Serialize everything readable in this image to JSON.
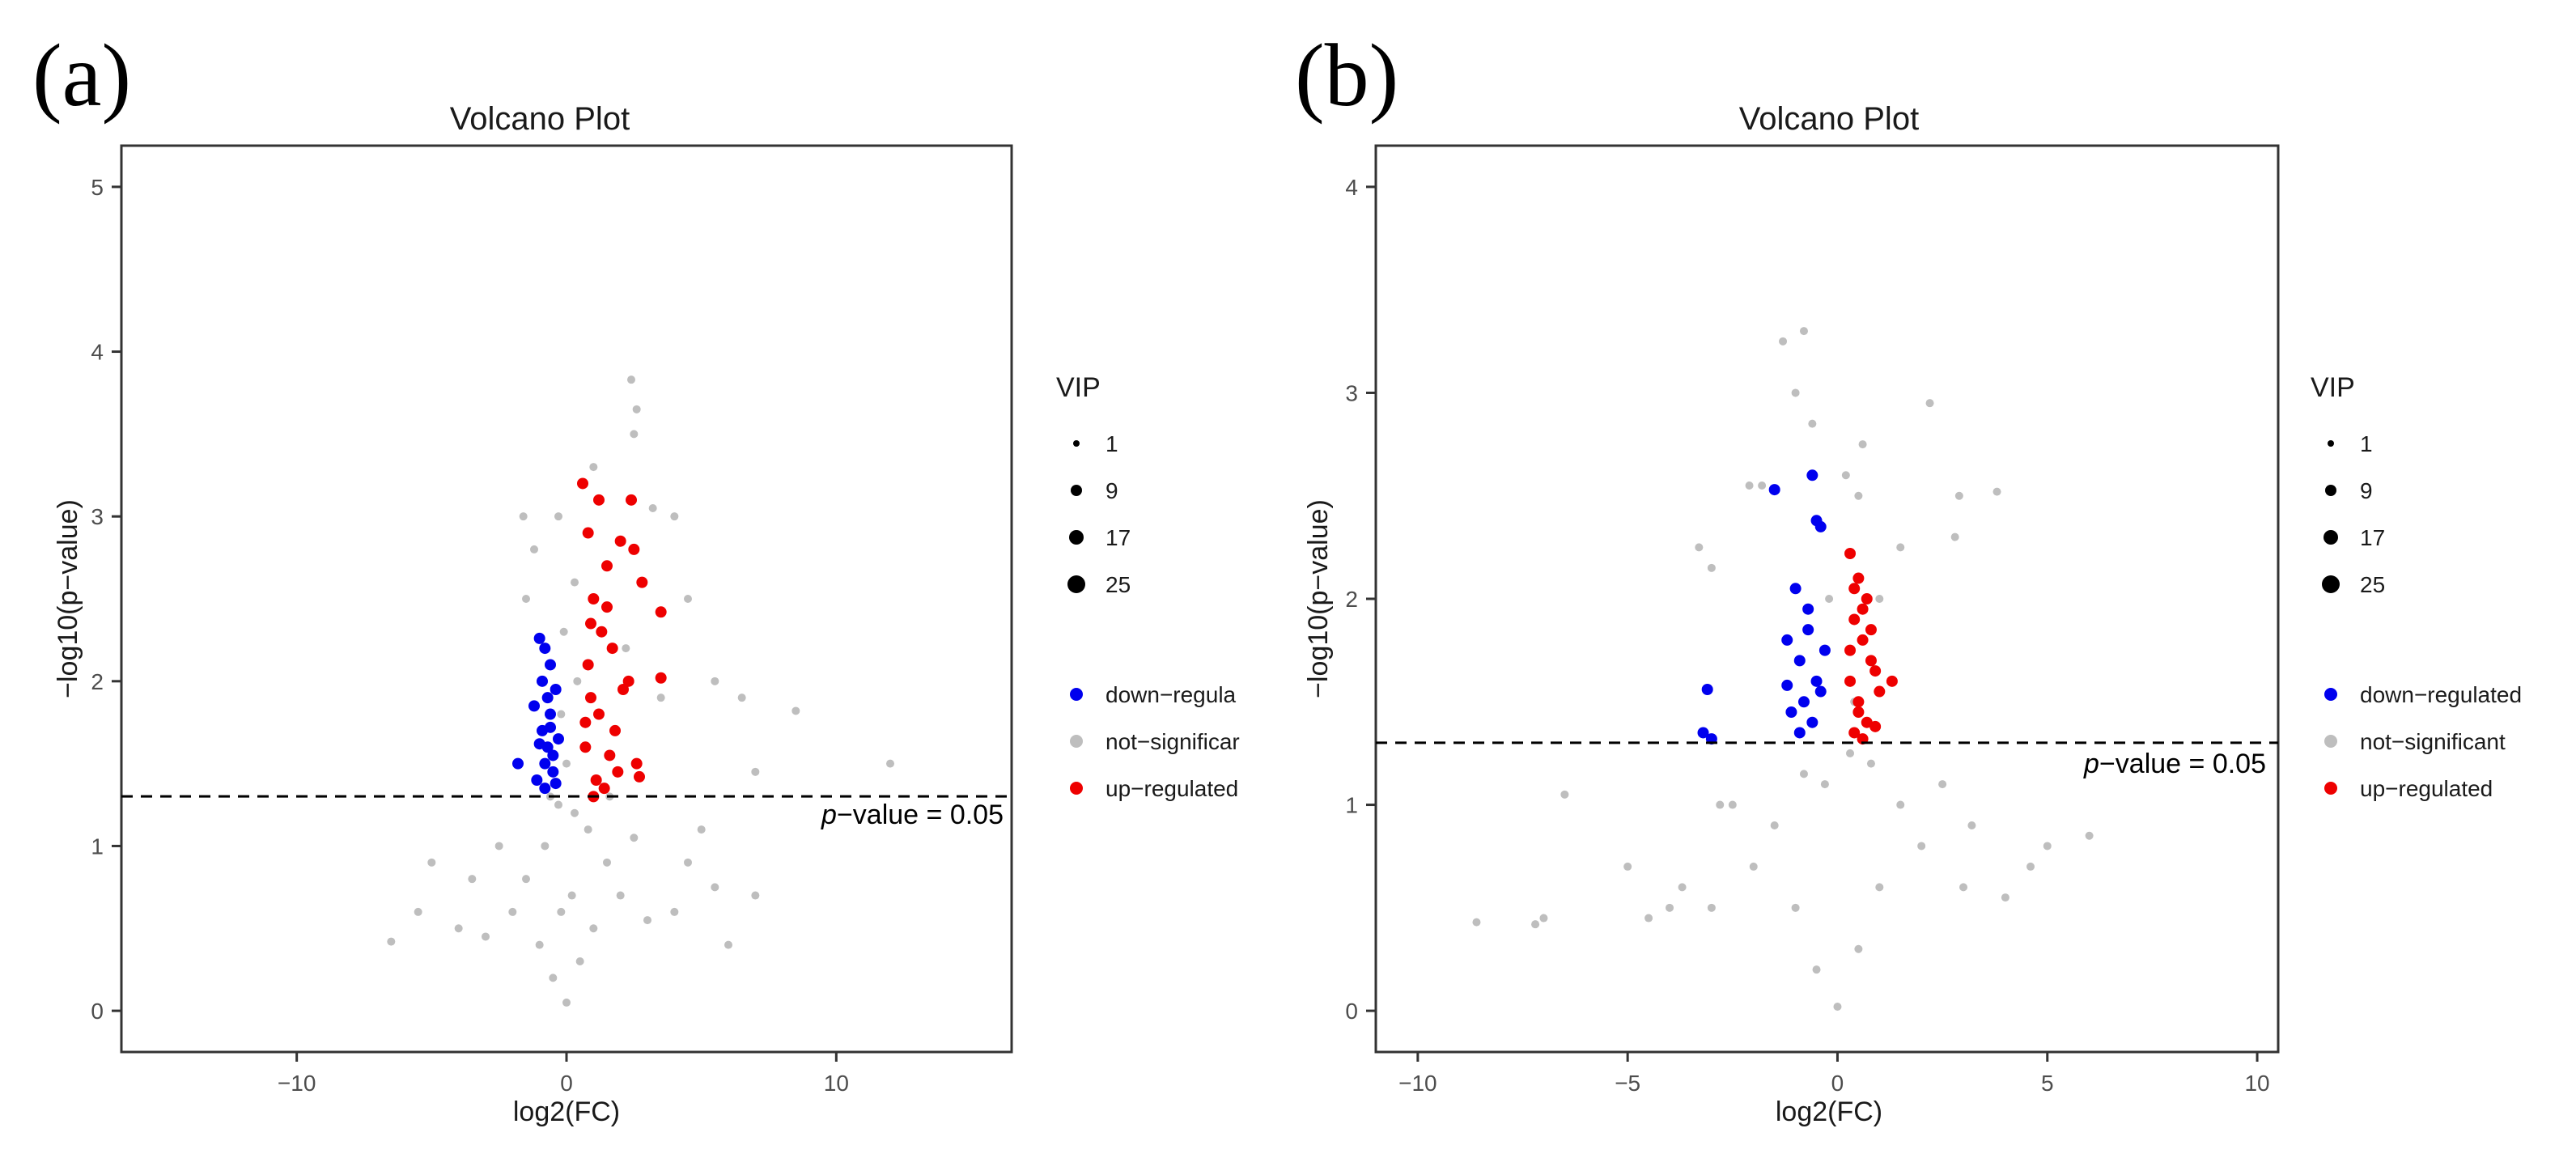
{
  "chart_data": [
    {
      "panel": "(a)",
      "type": "scatter",
      "title": "Volcano Plot",
      "xlabel": "log2(FC)",
      "ylabel": "−log10(p−value)",
      "xlim": [
        -16.5,
        16.5
      ],
      "ylim": [
        -0.25,
        5.25
      ],
      "xticks": [
        -10,
        0,
        10
      ],
      "xtick_labels": [
        "−10",
        "0",
        "10"
      ],
      "yticks": [
        0,
        1,
        2,
        3,
        4,
        5
      ],
      "threshold": {
        "y": 1.301,
        "label_italic": "p",
        "label_rest": "−value = 0.05"
      },
      "legend": {
        "size_title": "VIP",
        "sizes": [
          {
            "label": "1",
            "value": 1
          },
          {
            "label": "9",
            "value": 9
          },
          {
            "label": "17",
            "value": 17
          },
          {
            "label": "25",
            "value": 25
          }
        ],
        "colors": [
          {
            "label": "down−regula",
            "color": "#0000ee"
          },
          {
            "label": "not−significar",
            "color": "#bebebe"
          },
          {
            "label": "up−regulated",
            "color": "#ee0000"
          }
        ]
      },
      "series": [
        {
          "name": "down-regulated",
          "color": "#0000ee",
          "points": [
            [
              -1.0,
              2.26
            ],
            [
              -0.8,
              2.2
            ],
            [
              -0.6,
              2.1
            ],
            [
              -1.2,
              1.85
            ],
            [
              -0.4,
              1.95
            ],
            [
              -1.8,
              1.5
            ],
            [
              -0.9,
              1.7
            ],
            [
              -0.7,
              1.6
            ],
            [
              -0.5,
              1.55
            ],
            [
              -1.1,
              1.4
            ],
            [
              -0.8,
              1.35
            ],
            [
              -0.6,
              1.8
            ],
            [
              -0.3,
              1.65
            ],
            [
              -0.9,
              2.0
            ],
            [
              -0.5,
              1.45
            ],
            [
              -0.7,
              1.9
            ],
            [
              -1.0,
              1.62
            ],
            [
              -0.4,
              1.38
            ],
            [
              -0.6,
              1.72
            ],
            [
              -0.8,
              1.5
            ]
          ]
        },
        {
          "name": "not-significant",
          "color": "#bebebe",
          "points": [
            [
              0.0,
              0.05
            ],
            [
              -0.5,
              0.2
            ],
            [
              0.5,
              0.3
            ],
            [
              -1.0,
              0.4
            ],
            [
              1.0,
              0.5
            ],
            [
              -2.0,
              0.6
            ],
            [
              2.0,
              0.7
            ],
            [
              -3.0,
              0.45
            ],
            [
              3.0,
              0.55
            ],
            [
              -4.0,
              0.5
            ],
            [
              4.0,
              0.6
            ],
            [
              -6.5,
              0.42
            ],
            [
              -5.5,
              0.6
            ],
            [
              6.0,
              0.4
            ],
            [
              7.0,
              0.7
            ],
            [
              -1.5,
              0.8
            ],
            [
              1.5,
              0.9
            ],
            [
              -0.8,
              1.0
            ],
            [
              0.8,
              1.1
            ],
            [
              -2.5,
              1.0
            ],
            [
              2.5,
              1.05
            ],
            [
              0.3,
              1.2
            ],
            [
              -0.3,
              1.25
            ],
            [
              0.2,
              0.7
            ],
            [
              -0.2,
              0.6
            ],
            [
              4.5,
              0.9
            ],
            [
              5.0,
              1.1
            ],
            [
              -3.5,
              0.8
            ],
            [
              8.5,
              1.82
            ],
            [
              12.0,
              1.5
            ],
            [
              7.0,
              1.45
            ],
            [
              6.5,
              1.9
            ],
            [
              5.5,
              2.0
            ],
            [
              4.5,
              2.5
            ],
            [
              4.0,
              3.0
            ],
            [
              2.5,
              3.5
            ],
            [
              2.6,
              3.65
            ],
            [
              2.4,
              3.83
            ],
            [
              1.0,
              3.3
            ],
            [
              0.6,
              3.2
            ],
            [
              -0.3,
              3.0
            ],
            [
              -1.2,
              2.8
            ],
            [
              -1.6,
              3.0
            ],
            [
              0.3,
              2.6
            ],
            [
              -0.1,
              2.3
            ],
            [
              3.2,
              3.05
            ],
            [
              0.0,
              1.5
            ],
            [
              -0.2,
              1.8
            ],
            [
              2.2,
              2.2
            ],
            [
              3.5,
              1.9
            ],
            [
              -1.5,
              2.5
            ],
            [
              0.4,
              2.0
            ],
            [
              -0.6,
              1.3
            ],
            [
              1.6,
              1.3
            ],
            [
              -5.0,
              0.9
            ],
            [
              5.5,
              0.75
            ]
          ]
        },
        {
          "name": "up-regulated",
          "color": "#ee0000",
          "points": [
            [
              0.6,
              3.2
            ],
            [
              0.8,
              2.9
            ],
            [
              1.2,
              3.1
            ],
            [
              1.5,
              2.7
            ],
            [
              2.0,
              2.85
            ],
            [
              2.4,
              3.1
            ],
            [
              2.5,
              2.8
            ],
            [
              1.0,
              2.5
            ],
            [
              1.3,
              2.3
            ],
            [
              1.7,
              2.2
            ],
            [
              3.5,
              2.42
            ],
            [
              3.5,
              2.02
            ],
            [
              2.6,
              1.5
            ],
            [
              2.7,
              1.42
            ],
            [
              0.7,
              1.6
            ],
            [
              0.9,
              1.9
            ],
            [
              1.1,
              1.4
            ],
            [
              1.4,
              1.35
            ],
            [
              1.8,
              1.7
            ],
            [
              2.1,
              1.95
            ],
            [
              0.8,
              2.1
            ],
            [
              1.2,
              1.8
            ],
            [
              1.6,
              1.55
            ],
            [
              2.3,
              2.0
            ],
            [
              1.0,
              1.3
            ],
            [
              1.5,
              2.45
            ],
            [
              0.9,
              2.35
            ],
            [
              1.9,
              1.45
            ],
            [
              2.8,
              2.6
            ],
            [
              0.7,
              1.75
            ]
          ]
        }
      ]
    },
    {
      "panel": "(b)",
      "type": "scatter",
      "title": "Volcano Plot",
      "xlabel": "log2(FC)",
      "ylabel": "−log10(p−value)",
      "xlim": [
        -11,
        10.5
      ],
      "ylim": [
        -0.2,
        4.2
      ],
      "xticks": [
        -10,
        -5,
        0,
        5,
        10
      ],
      "xtick_labels": [
        "−10",
        "−5",
        "0",
        "5",
        "10"
      ],
      "yticks": [
        0,
        1,
        2,
        3,
        4
      ],
      "threshold": {
        "y": 1.301,
        "label_italic": "p",
        "label_rest": "−value = 0.05"
      },
      "legend": {
        "size_title": "VIP",
        "sizes": [
          {
            "label": "1",
            "value": 1
          },
          {
            "label": "9",
            "value": 9
          },
          {
            "label": "17",
            "value": 17
          },
          {
            "label": "25",
            "value": 25
          }
        ],
        "colors": [
          {
            "label": "down−regulated",
            "color": "#0000ee"
          },
          {
            "label": "not−significant",
            "color": "#bebebe"
          },
          {
            "label": "up−regulated",
            "color": "#ee0000"
          }
        ]
      },
      "series": [
        {
          "name": "down-regulated",
          "color": "#0000ee",
          "points": [
            [
              -0.6,
              2.6
            ],
            [
              -1.5,
              2.53
            ],
            [
              -0.5,
              2.38
            ],
            [
              -0.4,
              2.35
            ],
            [
              -1.0,
              2.05
            ],
            [
              -0.7,
              1.95
            ],
            [
              -1.2,
              1.8
            ],
            [
              -0.9,
              1.7
            ],
            [
              -0.5,
              1.6
            ],
            [
              -0.8,
              1.5
            ],
            [
              -1.1,
              1.45
            ],
            [
              -0.6,
              1.4
            ],
            [
              -0.9,
              1.35
            ],
            [
              -0.4,
              1.55
            ],
            [
              -0.7,
              1.85
            ],
            [
              -3.1,
              1.56
            ],
            [
              -3.2,
              1.35
            ],
            [
              -3.0,
              1.32
            ],
            [
              -0.3,
              1.75
            ],
            [
              -1.2,
              1.58
            ]
          ]
        },
        {
          "name": "not-significant",
          "color": "#bebebe",
          "points": [
            [
              0.0,
              0.02
            ],
            [
              -0.5,
              0.2
            ],
            [
              0.5,
              0.3
            ],
            [
              -1.0,
              0.5
            ],
            [
              1.0,
              0.6
            ],
            [
              -2.0,
              0.7
            ],
            [
              2.0,
              0.8
            ],
            [
              -3.0,
              0.5
            ],
            [
              3.0,
              0.6
            ],
            [
              -8.6,
              0.43
            ],
            [
              -7.2,
              0.42
            ],
            [
              -7.0,
              0.45
            ],
            [
              -4.0,
              0.5
            ],
            [
              4.0,
              0.55
            ],
            [
              -6.5,
              1.05
            ],
            [
              -2.5,
              1.0
            ],
            [
              2.5,
              1.1
            ],
            [
              -1.5,
              0.9
            ],
            [
              1.5,
              1.0
            ],
            [
              -0.8,
              1.15
            ],
            [
              0.8,
              1.2
            ],
            [
              0.3,
              1.25
            ],
            [
              -0.3,
              1.1
            ],
            [
              6.0,
              0.85
            ],
            [
              5.0,
              0.8
            ],
            [
              -5.0,
              0.7
            ],
            [
              -1.0,
              3.0
            ],
            [
              -0.8,
              3.3
            ],
            [
              -1.3,
              3.25
            ],
            [
              -0.6,
              2.85
            ],
            [
              0.2,
              2.6
            ],
            [
              0.5,
              2.5
            ],
            [
              2.2,
              2.95
            ],
            [
              3.8,
              2.52
            ],
            [
              2.9,
              2.5
            ],
            [
              2.8,
              2.3
            ],
            [
              1.5,
              2.25
            ],
            [
              1.0,
              2.0
            ],
            [
              -1.8,
              2.55
            ],
            [
              -3.3,
              2.25
            ],
            [
              -3.0,
              2.15
            ],
            [
              -2.1,
              2.55
            ],
            [
              0.6,
              2.75
            ],
            [
              -0.2,
              2.0
            ],
            [
              0.4,
              1.5
            ],
            [
              -2.8,
              1.0
            ],
            [
              -4.5,
              0.45
            ],
            [
              -3.7,
              0.6
            ],
            [
              4.6,
              0.7
            ],
            [
              3.2,
              0.9
            ]
          ]
        },
        {
          "name": "up-regulated",
          "color": "#ee0000",
          "points": [
            [
              0.3,
              2.22
            ],
            [
              0.5,
              2.1
            ],
            [
              0.7,
              2.0
            ],
            [
              0.4,
              1.9
            ],
            [
              0.6,
              1.8
            ],
            [
              0.8,
              1.7
            ],
            [
              0.3,
              1.6
            ],
            [
              0.5,
              1.5
            ],
            [
              0.7,
              1.4
            ],
            [
              0.4,
              1.35
            ],
            [
              1.0,
              1.55
            ],
            [
              1.3,
              1.6
            ],
            [
              0.6,
              1.95
            ],
            [
              0.9,
              1.65
            ],
            [
              0.5,
              1.45
            ],
            [
              0.3,
              1.75
            ],
            [
              0.8,
              1.85
            ],
            [
              0.4,
              2.05
            ],
            [
              0.6,
              1.32
            ],
            [
              0.9,
              1.38
            ]
          ]
        }
      ]
    }
  ]
}
